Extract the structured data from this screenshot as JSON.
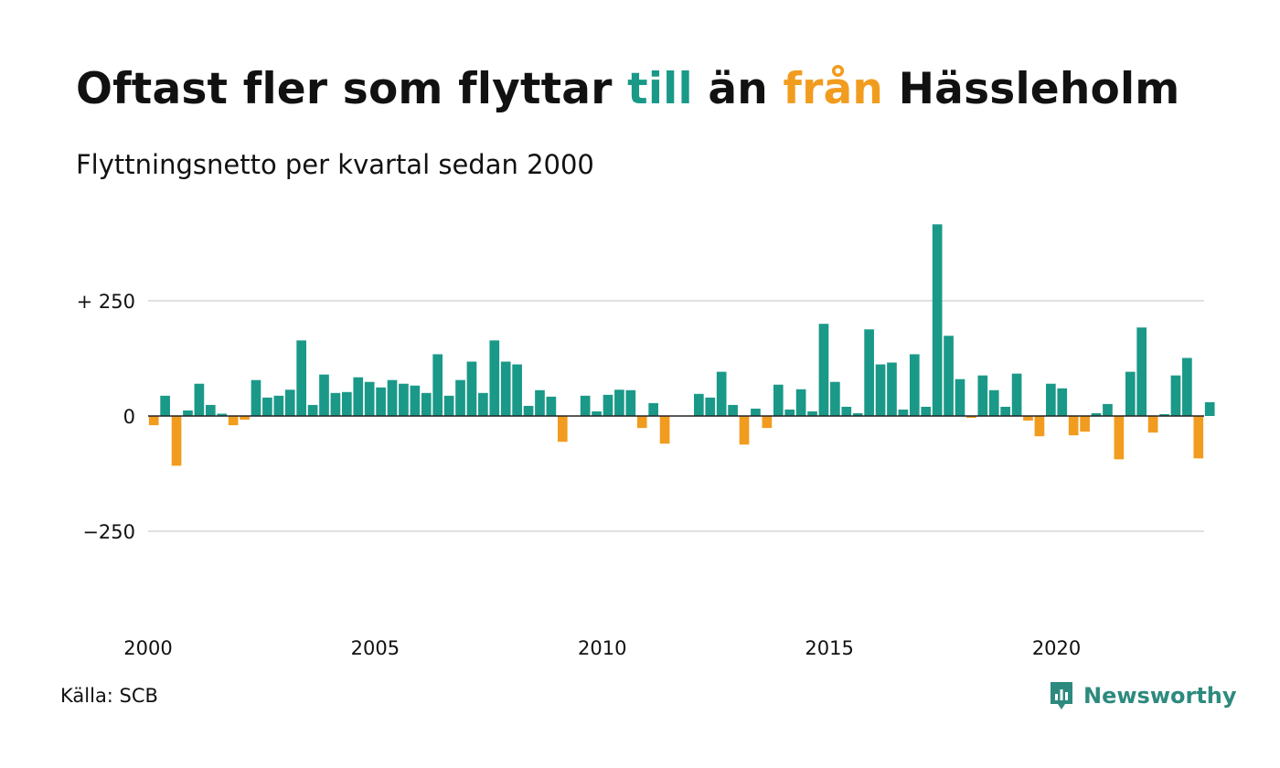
{
  "title": {
    "part1": "Oftast fler som flyttar ",
    "pos_word": "till",
    "part2": " än ",
    "neg_word": "från",
    "part3": " Hässleholm"
  },
  "subtitle": "Flyttningsnetto per kvartal sedan 2000",
  "source": "Källa: SCB",
  "brand": {
    "name": "Newsworthy",
    "icon": "newsworthy-logo-icon"
  },
  "colors": {
    "positive": "#1a9988",
    "negative": "#f19c1f",
    "grid": "#e0e0e0",
    "text": "#111111",
    "brand": "#2d8a7e"
  },
  "chart_data": {
    "type": "bar",
    "x_start": "2000 Q1",
    "frequency": "quarterly",
    "xlim": [
      2000,
      2023.25
    ],
    "ylim": [
      -420,
      420
    ],
    "y_ticks": [
      250,
      0,
      -250
    ],
    "y_tick_labels": [
      "+ 250",
      "0",
      "−250"
    ],
    "x_ticks": [
      2000,
      2005,
      2010,
      2015,
      2020
    ],
    "x_tick_labels": [
      "2000",
      "2005",
      "2010",
      "2015",
      "2020"
    ],
    "grid": true,
    "legend": "none",
    "values": [
      -20,
      44,
      -108,
      12,
      70,
      24,
      5,
      -20,
      -8,
      78,
      40,
      44,
      57,
      164,
      24,
      90,
      50,
      52,
      84,
      74,
      62,
      78,
      70,
      66,
      50,
      134,
      44,
      78,
      118,
      50,
      164,
      118,
      112,
      22,
      56,
      42,
      -56,
      0,
      44,
      10,
      46,
      57,
      56,
      -26,
      28,
      -60,
      0,
      0,
      48,
      40,
      96,
      24,
      -62,
      16,
      -26,
      68,
      14,
      58,
      10,
      200,
      74,
      20,
      6,
      188,
      112,
      116,
      14,
      134,
      20,
      416,
      174,
      80,
      -4,
      88,
      56,
      20,
      92,
      -10,
      -44,
      70,
      60,
      -42,
      -34,
      6,
      26,
      -94,
      96,
      192,
      -36,
      4,
      88,
      126,
      -92,
      30
    ]
  }
}
